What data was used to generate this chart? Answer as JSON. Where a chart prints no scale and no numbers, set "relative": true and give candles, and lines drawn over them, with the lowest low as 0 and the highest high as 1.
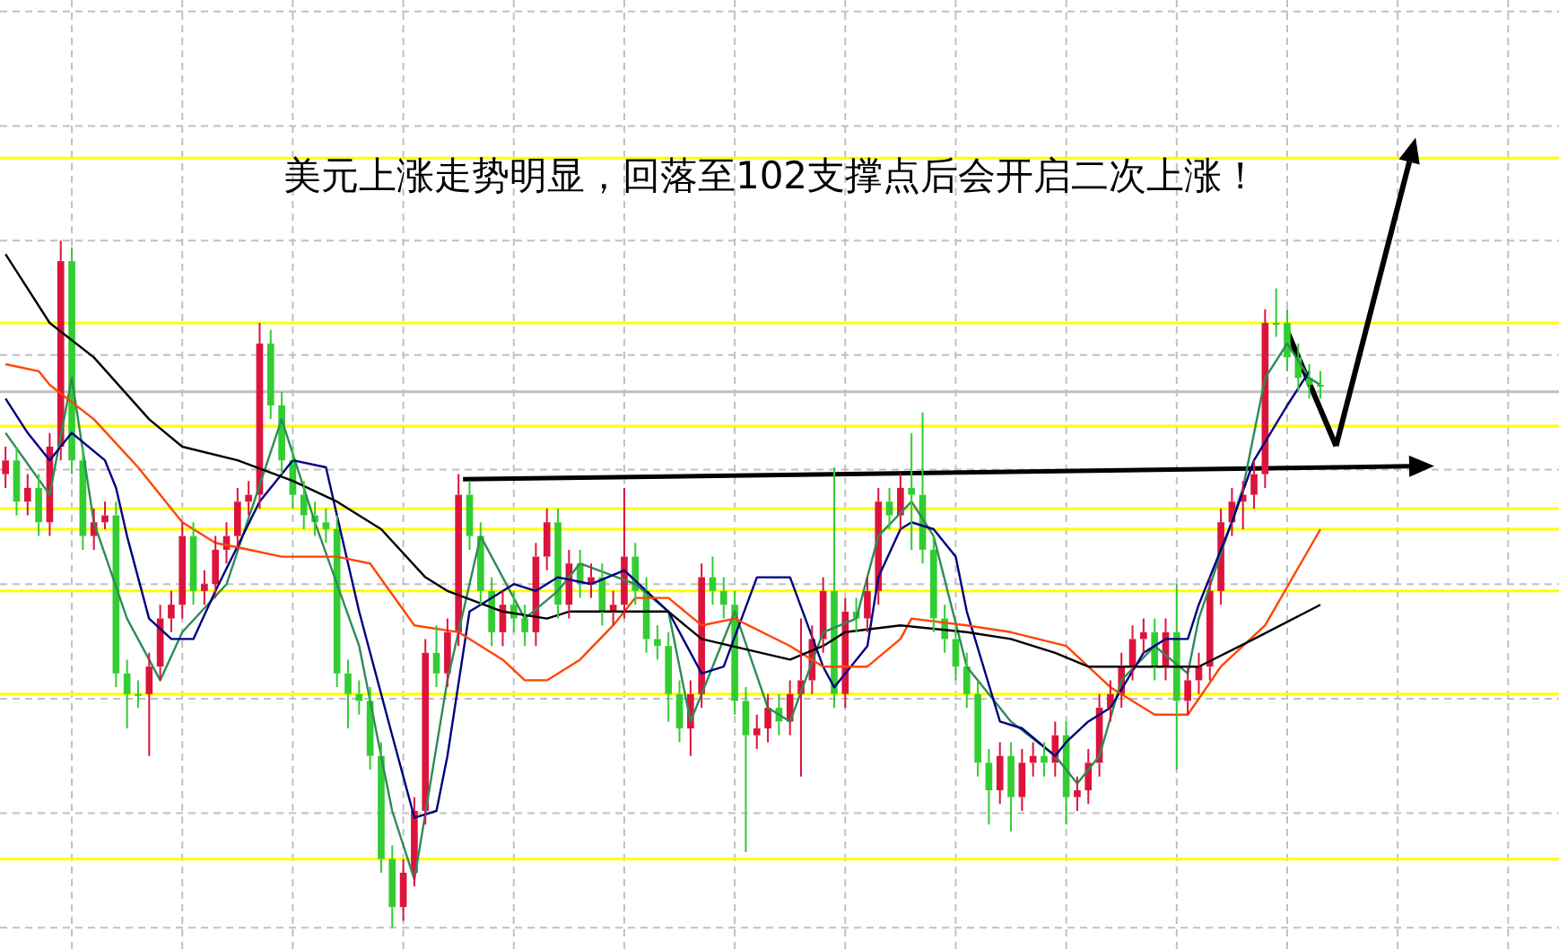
{
  "chart_data": {
    "type": "candlestick",
    "title": "美元上涨走势明显，回落至102支撑点后会开启二次上涨！",
    "relative": true,
    "grid": true,
    "tick_labels": false,
    "categories": [
      null,
      null,
      null,
      null,
      null,
      null,
      null,
      null,
      null,
      null,
      null,
      null,
      null,
      null,
      null,
      null,
      null,
      null,
      null,
      null,
      null,
      null,
      null,
      null,
      null,
      null,
      null,
      null,
      null,
      null,
      null,
      null,
      null,
      null,
      null,
      null,
      null,
      null,
      null,
      null,
      null,
      null,
      null,
      null,
      null,
      null,
      null,
      null,
      null,
      null,
      null,
      null,
      null,
      null,
      null,
      null,
      null,
      null,
      null,
      null,
      null,
      null,
      null,
      null,
      null,
      null,
      null,
      null,
      null,
      null,
      null,
      null,
      null,
      null,
      null,
      null,
      null,
      null,
      null,
      null,
      null,
      null,
      null,
      null,
      null,
      null,
      null,
      null,
      null,
      null,
      null,
      null,
      null,
      null,
      null,
      null,
      null,
      null,
      null,
      null,
      null,
      null,
      null,
      null,
      null,
      null,
      null,
      null,
      null,
      null,
      null,
      null,
      null,
      null,
      null,
      null,
      null,
      null,
      null,
      null
    ],
    "ohlc": [
      [
        0.66,
        0.7,
        0.64,
        0.68
      ],
      [
        0.68,
        0.7,
        0.6,
        0.62
      ],
      [
        0.62,
        0.66,
        0.6,
        0.64
      ],
      [
        0.64,
        0.66,
        0.57,
        0.59
      ],
      [
        0.59,
        0.72,
        0.57,
        0.7
      ],
      [
        0.7,
        1.0,
        0.68,
        0.97
      ],
      [
        0.97,
        0.99,
        0.66,
        0.68
      ],
      [
        0.68,
        0.7,
        0.55,
        0.57
      ],
      [
        0.57,
        0.61,
        0.55,
        0.59
      ],
      [
        0.59,
        0.62,
        0.58,
        0.6
      ],
      [
        0.6,
        0.62,
        0.35,
        0.37
      ],
      [
        0.37,
        0.39,
        0.29,
        0.34
      ],
      [
        0.34,
        0.36,
        0.32,
        0.34
      ],
      [
        0.34,
        0.4,
        0.25,
        0.38
      ],
      [
        0.38,
        0.47,
        0.36,
        0.45
      ],
      [
        0.45,
        0.49,
        0.43,
        0.47
      ],
      [
        0.47,
        0.59,
        0.45,
        0.57
      ],
      [
        0.57,
        0.59,
        0.47,
        0.49
      ],
      [
        0.49,
        0.52,
        0.47,
        0.5
      ],
      [
        0.5,
        0.57,
        0.48,
        0.55
      ],
      [
        0.55,
        0.59,
        0.53,
        0.57
      ],
      [
        0.57,
        0.64,
        0.55,
        0.62
      ],
      [
        0.62,
        0.65,
        0.6,
        0.63
      ],
      [
        0.63,
        0.88,
        0.61,
        0.85
      ],
      [
        0.85,
        0.87,
        0.74,
        0.76
      ],
      [
        0.76,
        0.78,
        0.66,
        0.68
      ],
      [
        0.68,
        0.7,
        0.61,
        0.63
      ],
      [
        0.63,
        0.65,
        0.58,
        0.6
      ],
      [
        0.6,
        0.62,
        0.57,
        0.59
      ],
      [
        0.59,
        0.61,
        0.56,
        0.58
      ],
      [
        0.58,
        0.6,
        0.35,
        0.37
      ],
      [
        0.37,
        0.39,
        0.29,
        0.34
      ],
      [
        0.34,
        0.36,
        0.31,
        0.33
      ],
      [
        0.33,
        0.35,
        0.23,
        0.25
      ],
      [
        0.25,
        0.27,
        0.08,
        0.1
      ],
      [
        0.1,
        0.12,
        0.0,
        0.03
      ],
      [
        0.03,
        0.1,
        0.01,
        0.08
      ],
      [
        0.08,
        0.19,
        0.06,
        0.17
      ],
      [
        0.17,
        0.42,
        0.15,
        0.4
      ],
      [
        0.4,
        0.44,
        0.35,
        0.37
      ],
      [
        0.37,
        0.45,
        0.35,
        0.43
      ],
      [
        0.43,
        0.66,
        0.41,
        0.63
      ],
      [
        0.63,
        0.65,
        0.55,
        0.57
      ],
      [
        0.57,
        0.59,
        0.47,
        0.49
      ],
      [
        0.49,
        0.51,
        0.41,
        0.43
      ],
      [
        0.43,
        0.49,
        0.41,
        0.47
      ],
      [
        0.47,
        0.49,
        0.43,
        0.45
      ],
      [
        0.45,
        0.47,
        0.41,
        0.43
      ],
      [
        0.43,
        0.56,
        0.41,
        0.54
      ],
      [
        0.54,
        0.61,
        0.52,
        0.59
      ],
      [
        0.59,
        0.61,
        0.45,
        0.47
      ],
      [
        0.47,
        0.55,
        0.45,
        0.53
      ],
      [
        0.53,
        0.55,
        0.48,
        0.5
      ],
      [
        0.5,
        0.53,
        0.48,
        0.51
      ],
      [
        0.51,
        0.53,
        0.44,
        0.46
      ],
      [
        0.46,
        0.49,
        0.44,
        0.47
      ],
      [
        0.47,
        0.64,
        0.45,
        0.54
      ],
      [
        0.54,
        0.56,
        0.47,
        0.49
      ],
      [
        0.49,
        0.51,
        0.4,
        0.42
      ],
      [
        0.42,
        0.44,
        0.39,
        0.41
      ],
      [
        0.41,
        0.43,
        0.3,
        0.34
      ],
      [
        0.34,
        0.36,
        0.27,
        0.29
      ],
      [
        0.29,
        0.36,
        0.25,
        0.34
      ],
      [
        0.34,
        0.53,
        0.32,
        0.51
      ],
      [
        0.51,
        0.54,
        0.47,
        0.49
      ],
      [
        0.49,
        0.51,
        0.45,
        0.47
      ],
      [
        0.47,
        0.49,
        0.31,
        0.33
      ],
      [
        0.33,
        0.35,
        0.11,
        0.28
      ],
      [
        0.28,
        0.31,
        0.26,
        0.29
      ],
      [
        0.29,
        0.34,
        0.27,
        0.32
      ],
      [
        0.32,
        0.34,
        0.28,
        0.3
      ],
      [
        0.3,
        0.36,
        0.28,
        0.34
      ],
      [
        0.34,
        0.45,
        0.22,
        0.36
      ],
      [
        0.36,
        0.44,
        0.34,
        0.42
      ],
      [
        0.42,
        0.51,
        0.4,
        0.49
      ],
      [
        0.49,
        0.67,
        0.32,
        0.34
      ],
      [
        0.34,
        0.48,
        0.32,
        0.46
      ],
      [
        0.46,
        0.48,
        0.43,
        0.45
      ],
      [
        0.45,
        0.51,
        0.43,
        0.49
      ],
      [
        0.49,
        0.64,
        0.47,
        0.62
      ],
      [
        0.62,
        0.64,
        0.58,
        0.6
      ],
      [
        0.6,
        0.66,
        0.58,
        0.64
      ],
      [
        0.64,
        0.72,
        0.55,
        0.63
      ],
      [
        0.63,
        0.75,
        0.53,
        0.55
      ],
      [
        0.55,
        0.57,
        0.43,
        0.45
      ],
      [
        0.45,
        0.47,
        0.4,
        0.42
      ],
      [
        0.42,
        0.44,
        0.36,
        0.38
      ],
      [
        0.38,
        0.4,
        0.32,
        0.34
      ],
      [
        0.34,
        0.36,
        0.22,
        0.24
      ],
      [
        0.24,
        0.26,
        0.15,
        0.2
      ],
      [
        0.2,
        0.27,
        0.18,
        0.25
      ],
      [
        0.25,
        0.27,
        0.14,
        0.19
      ],
      [
        0.19,
        0.26,
        0.17,
        0.24
      ],
      [
        0.24,
        0.27,
        0.22,
        0.25
      ],
      [
        0.25,
        0.27,
        0.22,
        0.24
      ],
      [
        0.24,
        0.3,
        0.22,
        0.28
      ],
      [
        0.28,
        0.3,
        0.15,
        0.19
      ],
      [
        0.19,
        0.22,
        0.17,
        0.2
      ],
      [
        0.2,
        0.26,
        0.18,
        0.24
      ],
      [
        0.24,
        0.34,
        0.22,
        0.32
      ],
      [
        0.32,
        0.36,
        0.3,
        0.34
      ],
      [
        0.34,
        0.4,
        0.32,
        0.38
      ],
      [
        0.38,
        0.44,
        0.36,
        0.42
      ],
      [
        0.42,
        0.45,
        0.4,
        0.43
      ],
      [
        0.43,
        0.45,
        0.36,
        0.38
      ],
      [
        0.38,
        0.45,
        0.36,
        0.43
      ],
      [
        0.43,
        0.5,
        0.23,
        0.33
      ],
      [
        0.33,
        0.38,
        0.31,
        0.36
      ],
      [
        0.36,
        0.4,
        0.34,
        0.38
      ],
      [
        0.38,
        0.51,
        0.36,
        0.49
      ],
      [
        0.49,
        0.61,
        0.47,
        0.59
      ],
      [
        0.59,
        0.64,
        0.57,
        0.62
      ],
      [
        0.62,
        0.65,
        0.58,
        0.63
      ],
      [
        0.63,
        0.68,
        0.61,
        0.66
      ],
      [
        0.66,
        0.9,
        0.64,
        0.88
      ],
      [
        0.88,
        0.93,
        0.86,
        0.88
      ],
      [
        0.88,
        0.9,
        0.81,
        0.83
      ],
      [
        0.83,
        0.85,
        0.78,
        0.8
      ],
      [
        0.8,
        0.82,
        0.77,
        0.79
      ],
      [
        0.79,
        0.81,
        0.77,
        0.79
      ]
    ],
    "colors": [
      "#dc143c",
      "#32cd32",
      "#dc143c",
      "#32cd32",
      "#dc143c",
      "#dc143c",
      "#32cd32",
      "#32cd32",
      "#dc143c",
      "#dc143c",
      "#32cd32",
      "#32cd32",
      "#32cd32",
      "#dc143c",
      "#dc143c",
      "#dc143c",
      "#dc143c",
      "#32cd32",
      "#dc143c",
      "#dc143c",
      "#dc143c",
      "#dc143c",
      "#dc143c",
      "#dc143c",
      "#32cd32",
      "#32cd32",
      "#32cd32",
      "#32cd32",
      "#32cd32",
      "#32cd32",
      "#32cd32",
      "#32cd32",
      "#32cd32",
      "#32cd32",
      "#32cd32",
      "#32cd32",
      "#dc143c",
      "#dc143c",
      "#dc143c",
      "#32cd32",
      "#dc143c",
      "#dc143c",
      "#32cd32",
      "#32cd32",
      "#32cd32",
      "#dc143c",
      "#32cd32",
      "#32cd32",
      "#dc143c",
      "#dc143c",
      "#32cd32",
      "#dc143c",
      "#32cd32",
      "#dc143c",
      "#32cd32",
      "#dc143c",
      "#dc143c",
      "#32cd32",
      "#32cd32",
      "#32cd32",
      "#32cd32",
      "#32cd32",
      "#dc143c",
      "#dc143c",
      "#32cd32",
      "#32cd32",
      "#32cd32",
      "#32cd32",
      "#dc143c",
      "#dc143c",
      "#32cd32",
      "#dc143c",
      "#dc143c",
      "#dc143c",
      "#dc143c",
      "#32cd32",
      "#dc143c",
      "#32cd32",
      "#dc143c",
      "#dc143c",
      "#32cd32",
      "#dc143c",
      "#32cd32",
      "#32cd32",
      "#32cd32",
      "#32cd32",
      "#32cd32",
      "#32cd32",
      "#32cd32",
      "#32cd32",
      "#dc143c",
      "#32cd32",
      "#dc143c",
      "#dc143c",
      "#32cd32",
      "#dc143c",
      "#32cd32",
      "#dc143c",
      "#dc143c",
      "#dc143c",
      "#dc143c",
      "#dc143c",
      "#dc143c",
      "#dc143c",
      "#32cd32",
      "#dc143c",
      "#32cd32",
      "#dc143c",
      "#dc143c",
      "#dc143c",
      "#dc143c",
      "#dc143c",
      "#dc143c",
      "#dc143c",
      "#dc143c",
      "#32cd32",
      "#32cd32",
      "#32cd32",
      "#32cd32",
      "#32cd32"
    ],
    "series": [
      {
        "type": "line",
        "color": "#2e8b57",
        "values": [
          0.72,
          null,
          null,
          null,
          0.63,
          null,
          0.8,
          null,
          0.59,
          null,
          null,
          0.45,
          null,
          null,
          0.36,
          null,
          0.43,
          null,
          null,
          null,
          0.5,
          null,
          null,
          null,
          null,
          0.74,
          null,
          null,
          0.59,
          null,
          null,
          null,
          0.41,
          null,
          null,
          0.17,
          null,
          0.07,
          null,
          null,
          0.36,
          null,
          null,
          0.57,
          null,
          null,
          null,
          0.45,
          null,
          null,
          0.49,
          null,
          0.53,
          null,
          null,
          null,
          null,
          0.5,
          null,
          null,
          0.46,
          null,
          0.3,
          null,
          null,
          null,
          0.46,
          null,
          null,
          0.32,
          null,
          0.3,
          null,
          null,
          0.43,
          null,
          null,
          0.45,
          null,
          0.57,
          null,
          null,
          0.62,
          null,
          0.57,
          null,
          null,
          0.38,
          null,
          null,
          null,
          0.3,
          null,
          null,
          null,
          0.25,
          null,
          0.21,
          null,
          0.25,
          null,
          0.36,
          null,
          null,
          0.41,
          null,
          null,
          0.37,
          0.45,
          null,
          null,
          null,
          0.64,
          null,
          0.8,
          null,
          0.85,
          null,
          0.8,
          0.79
        ]
      },
      {
        "type": "line",
        "color": "#000080",
        "values": [
          0.77,
          null,
          0.72,
          null,
          0.68,
          null,
          0.72,
          null,
          null,
          0.68,
          0.64,
          0.57,
          null,
          0.45,
          null,
          0.42,
          null,
          0.42,
          null,
          0.49,
          null,
          null,
          null,
          0.62,
          null,
          null,
          0.68,
          null,
          null,
          0.67,
          0.6,
          null,
          0.46,
          null,
          null,
          0.28,
          null,
          0.16,
          null,
          0.17,
          0.25,
          null,
          0.46,
          0.47,
          null,
          null,
          0.5,
          null,
          0.49,
          null,
          0.51,
          null,
          null,
          0.5,
          null,
          null,
          0.52,
          null,
          null,
          null,
          0.46,
          null,
          null,
          0.37,
          null,
          0.38,
          null,
          null,
          0.51,
          null,
          null,
          0.51,
          null,
          null,
          0.38,
          0.35,
          null,
          null,
          0.41,
          0.51,
          null,
          0.58,
          0.59,
          null,
          0.58,
          null,
          0.54,
          0.46,
          null,
          null,
          0.3,
          null,
          0.29,
          null,
          null,
          0.25,
          0.27,
          null,
          0.3,
          null,
          0.32,
          null,
          null,
          0.4,
          null,
          0.42,
          null,
          0.42,
          0.47,
          null,
          null,
          0.59,
          null,
          0.68,
          null,
          null,
          0.76,
          null,
          0.81,
          null
        ]
      },
      {
        "type": "line",
        "color": "#ff4500",
        "values": [
          0.82,
          null,
          null,
          0.81,
          0.79,
          null,
          null,
          null,
          0.74,
          null,
          null,
          null,
          0.67,
          null,
          null,
          null,
          0.59,
          null,
          null,
          0.56,
          null,
          null,
          0.55,
          null,
          null,
          0.54,
          null,
          null,
          null,
          null,
          0.54,
          null,
          null,
          0.53,
          null,
          null,
          null,
          0.44,
          null,
          null,
          null,
          0.43,
          null,
          null,
          null,
          0.39,
          null,
          0.36,
          null,
          0.36,
          null,
          null,
          0.39,
          null,
          null,
          0.44,
          null,
          0.48,
          null,
          null,
          0.48,
          null,
          null,
          0.44,
          null,
          null,
          0.45,
          null,
          null,
          null,
          null,
          0.41,
          null,
          null,
          0.38,
          null,
          null,
          null,
          0.38,
          null,
          null,
          0.42,
          0.45,
          null,
          null,
          null,
          null,
          0.44,
          null,
          null,
          null,
          0.43,
          null,
          null,
          null,
          null,
          0.41,
          null,
          null,
          null,
          0.35,
          null,
          null,
          null,
          0.31,
          null,
          null,
          0.31,
          null,
          null,
          0.38,
          null,
          null,
          null,
          0.44,
          null,
          null,
          null,
          null,
          0.58
        ]
      },
      {
        "type": "line",
        "color": "#000000",
        "values": [
          0.98,
          null,
          null,
          null,
          0.88,
          null,
          null,
          null,
          0.83,
          null,
          null,
          null,
          null,
          0.74,
          null,
          null,
          0.7,
          null,
          null,
          null,
          null,
          0.68,
          null,
          null,
          null,
          null,
          0.65,
          null,
          null,
          null,
          0.62,
          null,
          null,
          null,
          0.58,
          null,
          null,
          null,
          0.51,
          null,
          0.49,
          null,
          null,
          null,
          null,
          0.46,
          null,
          null,
          null,
          0.45,
          null,
          0.46,
          null,
          null,
          null,
          null,
          0.46,
          null,
          null,
          null,
          0.46,
          null,
          null,
          0.42,
          null,
          null,
          null,
          null,
          null,
          null,
          null,
          0.39,
          null,
          null,
          0.41,
          null,
          0.43,
          null,
          null,
          null,
          null,
          0.44,
          null,
          null,
          null,
          null,
          null,
          0.43,
          null,
          null,
          null,
          0.42,
          null,
          null,
          null,
          0.4,
          null,
          null,
          0.38,
          null,
          null,
          null,
          null,
          0.38,
          null,
          null,
          null,
          null,
          0.38,
          null,
          null,
          null,
          null,
          0.42,
          null,
          null,
          null,
          null,
          null,
          0.47
        ]
      }
    ],
    "ref_lines": [
      {
        "axis": "y",
        "value": 1.12,
        "color": "#ffff00"
      },
      {
        "axis": "y",
        "value": 0.88,
        "color": "#ffff00"
      },
      {
        "axis": "y",
        "value": 0.78,
        "color": "#c0c0c0"
      },
      {
        "axis": "y",
        "value": 0.73,
        "color": "#ffff00"
      },
      {
        "axis": "y",
        "value": 0.61,
        "color": "#ffff00"
      },
      {
        "axis": "y",
        "value": 0.58,
        "color": "#ffff00"
      },
      {
        "axis": "y",
        "value": 0.49,
        "color": "#ffff00"
      },
      {
        "axis": "y",
        "value": 0.34,
        "color": "#ffff00"
      },
      {
        "axis": "y",
        "value": 0.1,
        "color": "#ffff00"
      }
    ]
  }
}
